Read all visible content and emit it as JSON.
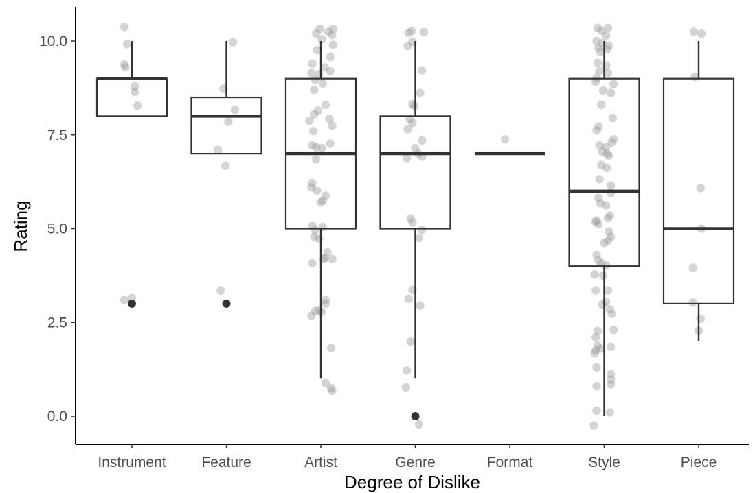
{
  "chart_data": {
    "type": "boxplot",
    "xlabel": "Degree of Dislike",
    "ylabel": "Rating",
    "ylim": [
      -0.7,
      11.1
    ],
    "y_ticks": [
      {
        "value": 0,
        "label": "0.0"
      },
      {
        "value": 2.5,
        "label": "2.5"
      },
      {
        "value": 5,
        "label": "5.0"
      },
      {
        "value": 7.5,
        "label": "7.5"
      },
      {
        "value": 10,
        "label": "10.0"
      }
    ],
    "categories": [
      "Instrument",
      "Feature",
      "Artist",
      "Genre",
      "Format",
      "Style",
      "Piece"
    ],
    "grid": false,
    "legend": "none",
    "colors": {
      "box": "#333333",
      "outlier": "#333333",
      "jitter": "#999999"
    },
    "boxes": [
      {
        "category": "Instrument",
        "whisker_low": 8,
        "q1": 8,
        "median": 9,
        "q3": 9,
        "whisker_high": 10,
        "outliers": [
          3
        ]
      },
      {
        "category": "Feature",
        "whisker_low": 7,
        "q1": 7,
        "median": 8,
        "q3": 8.5,
        "whisker_high": 10,
        "outliers": [
          3
        ]
      },
      {
        "category": "Artist",
        "whisker_low": 1,
        "q1": 5,
        "median": 7,
        "q3": 9,
        "whisker_high": 10,
        "outliers": []
      },
      {
        "category": "Genre",
        "whisker_low": 1,
        "q1": 5,
        "median": 7,
        "q3": 8,
        "whisker_high": 10,
        "outliers": [
          0
        ]
      },
      {
        "category": "Format",
        "whisker_low": 7,
        "q1": 7,
        "median": 7,
        "q3": 7,
        "whisker_high": 7,
        "outliers": []
      },
      {
        "category": "Style",
        "whisker_low": 0,
        "q1": 4,
        "median": 6,
        "q3": 9,
        "whisker_high": 10,
        "outliers": []
      },
      {
        "category": "Piece",
        "whisker_low": 2,
        "q1": 3,
        "median": 5,
        "q3": 9,
        "whisker_high": 10,
        "outliers": []
      }
    ],
    "jitter_points": [
      {
        "category": "Instrument",
        "points": [
          {
            "x": -0.08,
            "y": 10.38
          },
          {
            "x": -0.05,
            "y": 9.92
          },
          {
            "x": -0.08,
            "y": 9.38
          },
          {
            "x": -0.07,
            "y": 9.3
          },
          {
            "x": 0.03,
            "y": 8.8
          },
          {
            "x": 0.03,
            "y": 8.65
          },
          {
            "x": 0.06,
            "y": 8.28
          },
          {
            "x": -0.08,
            "y": 3.1
          },
          {
            "x": 0.0,
            "y": 3.15
          }
        ]
      },
      {
        "category": "Feature",
        "points": [
          {
            "x": 0.07,
            "y": 9.97
          },
          {
            "x": -0.03,
            "y": 8.73
          },
          {
            "x": 0.09,
            "y": 8.17
          },
          {
            "x": 0.02,
            "y": 7.85
          },
          {
            "x": -0.09,
            "y": 7.1
          },
          {
            "x": -0.01,
            "y": 6.68
          },
          {
            "x": -0.06,
            "y": 3.35
          }
        ]
      },
      {
        "category": "Artist",
        "points": [
          {
            "x": -0.01,
            "y": 10.33
          },
          {
            "x": 0.13,
            "y": 10.32
          },
          {
            "x": 0.08,
            "y": 10.25
          },
          {
            "x": -0.05,
            "y": 10.2
          },
          {
            "x": 0.12,
            "y": 10.16
          },
          {
            "x": 0.01,
            "y": 10.05
          },
          {
            "x": 0.13,
            "y": 9.9
          },
          {
            "x": -0.04,
            "y": 9.76
          },
          {
            "x": 0.1,
            "y": 9.58
          },
          {
            "x": -0.09,
            "y": 9.4
          },
          {
            "x": 0.04,
            "y": 9.3
          },
          {
            "x": -0.1,
            "y": 9.15
          },
          {
            "x": -0.02,
            "y": 9.12
          },
          {
            "x": 0.1,
            "y": 9.2
          },
          {
            "x": -0.06,
            "y": 8.97
          },
          {
            "x": 0.02,
            "y": 8.87
          },
          {
            "x": -0.07,
            "y": 8.7
          },
          {
            "x": 0.05,
            "y": 8.3
          },
          {
            "x": -0.03,
            "y": 8.15
          },
          {
            "x": -0.07,
            "y": 8.05
          },
          {
            "x": 0.09,
            "y": 7.93
          },
          {
            "x": -0.12,
            "y": 7.88
          },
          {
            "x": 0.12,
            "y": 7.75
          },
          {
            "x": -0.08,
            "y": 7.6
          },
          {
            "x": 0.1,
            "y": 7.27
          },
          {
            "x": -0.09,
            "y": 7.22
          },
          {
            "x": -0.05,
            "y": 7.17
          },
          {
            "x": 0.01,
            "y": 7.15
          },
          {
            "x": -0.05,
            "y": 6.85
          },
          {
            "x": -0.09,
            "y": 6.22
          },
          {
            "x": -0.1,
            "y": 6.1
          },
          {
            "x": -0.04,
            "y": 6.02
          },
          {
            "x": 0.05,
            "y": 5.88
          },
          {
            "x": 0.02,
            "y": 5.75
          },
          {
            "x": 0.0,
            "y": 5.7
          },
          {
            "x": -0.09,
            "y": 5.07
          },
          {
            "x": 0.02,
            "y": 5.05
          },
          {
            "x": -0.06,
            "y": 4.96
          },
          {
            "x": -0.07,
            "y": 4.78
          },
          {
            "x": -0.02,
            "y": 4.73
          },
          {
            "x": 0.07,
            "y": 4.37
          },
          {
            "x": 0.04,
            "y": 4.22
          },
          {
            "x": 0.03,
            "y": 4.19
          },
          {
            "x": 0.12,
            "y": 4.19
          },
          {
            "x": -0.09,
            "y": 4.08
          },
          {
            "x": 0.05,
            "y": 3.1
          },
          {
            "x": 0.05,
            "y": 3.0
          },
          {
            "x": -0.02,
            "y": 2.82
          },
          {
            "x": -0.06,
            "y": 2.8
          },
          {
            "x": 0.01,
            "y": 2.78
          },
          {
            "x": -0.1,
            "y": 2.68
          },
          {
            "x": 0.11,
            "y": 1.82
          },
          {
            "x": 0.05,
            "y": 0.88
          },
          {
            "x": 0.11,
            "y": 0.75
          },
          {
            "x": 0.12,
            "y": 0.68
          }
        ]
      },
      {
        "category": "Genre",
        "points": [
          {
            "x": -0.07,
            "y": 10.22
          },
          {
            "x": 0.09,
            "y": 10.24
          },
          {
            "x": -0.04,
            "y": 10.27
          },
          {
            "x": -0.08,
            "y": 9.87
          },
          {
            "x": -0.03,
            "y": 9.98
          },
          {
            "x": 0.07,
            "y": 9.22
          },
          {
            "x": 0.05,
            "y": 8.62
          },
          {
            "x": -0.03,
            "y": 8.32
          },
          {
            "x": -0.01,
            "y": 8.27
          },
          {
            "x": -0.06,
            "y": 7.92
          },
          {
            "x": -0.03,
            "y": 7.82
          },
          {
            "x": -0.08,
            "y": 7.65
          },
          {
            "x": 0.07,
            "y": 7.35
          },
          {
            "x": 0.0,
            "y": 7.15
          },
          {
            "x": 0.03,
            "y": 7.0
          },
          {
            "x": -0.09,
            "y": 6.88
          },
          {
            "x": 0.07,
            "y": 6.92
          },
          {
            "x": -0.05,
            "y": 5.27
          },
          {
            "x": -0.03,
            "y": 5.17
          },
          {
            "x": 0.07,
            "y": 4.97
          },
          {
            "x": 0.04,
            "y": 4.75
          },
          {
            "x": -0.03,
            "y": 3.37
          },
          {
            "x": -0.07,
            "y": 3.13
          },
          {
            "x": 0.05,
            "y": 2.95
          },
          {
            "x": -0.05,
            "y": 1.99
          },
          {
            "x": -0.09,
            "y": 1.22
          },
          {
            "x": -0.1,
            "y": 0.77
          },
          {
            "x": 0.04,
            "y": -0.22
          }
        ]
      },
      {
        "category": "Format",
        "points": [
          {
            "x": -0.05,
            "y": 7.38
          }
        ]
      },
      {
        "category": "Style",
        "points": [
          {
            "x": -0.07,
            "y": 10.35
          },
          {
            "x": 0.04,
            "y": 10.35
          },
          {
            "x": -0.03,
            "y": 10.28
          },
          {
            "x": 0.02,
            "y": 10.15
          },
          {
            "x": -0.08,
            "y": 10.0
          },
          {
            "x": -0.02,
            "y": 9.95
          },
          {
            "x": 0.05,
            "y": 9.88
          },
          {
            "x": -0.06,
            "y": 9.82
          },
          {
            "x": 0.03,
            "y": 9.78
          },
          {
            "x": -0.04,
            "y": 9.72
          },
          {
            "x": -0.07,
            "y": 9.42
          },
          {
            "x": 0.02,
            "y": 9.35
          },
          {
            "x": -0.05,
            "y": 9.2
          },
          {
            "x": 0.04,
            "y": 9.15
          },
          {
            "x": -0.08,
            "y": 9.02
          },
          {
            "x": -0.09,
            "y": 8.92
          },
          {
            "x": 0.1,
            "y": 8.85
          },
          {
            "x": -0.01,
            "y": 8.68
          },
          {
            "x": 0.07,
            "y": 8.62
          },
          {
            "x": -0.03,
            "y": 8.3
          },
          {
            "x": 0.09,
            "y": 7.95
          },
          {
            "x": -0.06,
            "y": 7.72
          },
          {
            "x": -0.08,
            "y": 7.62
          },
          {
            "x": 0.1,
            "y": 7.38
          },
          {
            "x": -0.05,
            "y": 7.22
          },
          {
            "x": 0.02,
            "y": 7.18
          },
          {
            "x": 0.08,
            "y": 7.3
          },
          {
            "x": -0.02,
            "y": 7.05
          },
          {
            "x": 0.03,
            "y": 7.0
          },
          {
            "x": 0.05,
            "y": 6.95
          },
          {
            "x": -0.03,
            "y": 6.7
          },
          {
            "x": 0.03,
            "y": 6.62
          },
          {
            "x": -0.05,
            "y": 6.32
          },
          {
            "x": 0.07,
            "y": 6.15
          },
          {
            "x": 0.07,
            "y": 5.95
          },
          {
            "x": -0.06,
            "y": 5.82
          },
          {
            "x": -0.04,
            "y": 5.68
          },
          {
            "x": 0.02,
            "y": 5.62
          },
          {
            "x": 0.06,
            "y": 5.35
          },
          {
            "x": 0.04,
            "y": 5.28
          },
          {
            "x": -0.08,
            "y": 5.22
          },
          {
            "x": -0.09,
            "y": 5.18
          },
          {
            "x": -0.06,
            "y": 5.12
          },
          {
            "x": 0.05,
            "y": 4.92
          },
          {
            "x": 0.07,
            "y": 4.78
          },
          {
            "x": 0.04,
            "y": 4.68
          },
          {
            "x": 0.0,
            "y": 4.62
          },
          {
            "x": -0.08,
            "y": 4.3
          },
          {
            "x": -0.06,
            "y": 4.15
          },
          {
            "x": -0.03,
            "y": 4.08
          },
          {
            "x": 0.02,
            "y": 4.02
          },
          {
            "x": -0.1,
            "y": 3.78
          },
          {
            "x": -0.01,
            "y": 3.75
          },
          {
            "x": 0.04,
            "y": 3.35
          },
          {
            "x": -0.09,
            "y": 3.35
          },
          {
            "x": 0.02,
            "y": 3.05
          },
          {
            "x": -0.02,
            "y": 2.98
          },
          {
            "x": 0.06,
            "y": 2.85
          },
          {
            "x": 0.08,
            "y": 2.73
          },
          {
            "x": -0.07,
            "y": 2.27
          },
          {
            "x": 0.1,
            "y": 2.3
          },
          {
            "x": -0.09,
            "y": 2.1
          },
          {
            "x": -0.07,
            "y": 1.88
          },
          {
            "x": 0.07,
            "y": 1.85
          },
          {
            "x": -0.09,
            "y": 1.75
          },
          {
            "x": -0.04,
            "y": 1.8
          },
          {
            "x": -0.1,
            "y": 1.68
          },
          {
            "x": 0.07,
            "y": 1.12
          },
          {
            "x": 0.07,
            "y": 0.98
          },
          {
            "x": 0.07,
            "y": 0.85
          },
          {
            "x": -0.08,
            "y": 0.8
          },
          {
            "x": -0.08,
            "y": 1.3
          },
          {
            "x": -0.08,
            "y": 0.15
          },
          {
            "x": 0.06,
            "y": 0.1
          },
          {
            "x": -0.11,
            "y": -0.25
          }
        ]
      },
      {
        "category": "Piece",
        "points": [
          {
            "x": -0.05,
            "y": 10.25
          },
          {
            "x": 0.03,
            "y": 10.2
          },
          {
            "x": -0.04,
            "y": 9.05
          },
          {
            "x": 0.02,
            "y": 6.08
          },
          {
            "x": 0.03,
            "y": 5.0
          },
          {
            "x": -0.06,
            "y": 3.96
          },
          {
            "x": -0.06,
            "y": 3.03
          },
          {
            "x": 0.02,
            "y": 2.6
          },
          {
            "x": 0.0,
            "y": 2.28
          }
        ]
      }
    ]
  }
}
